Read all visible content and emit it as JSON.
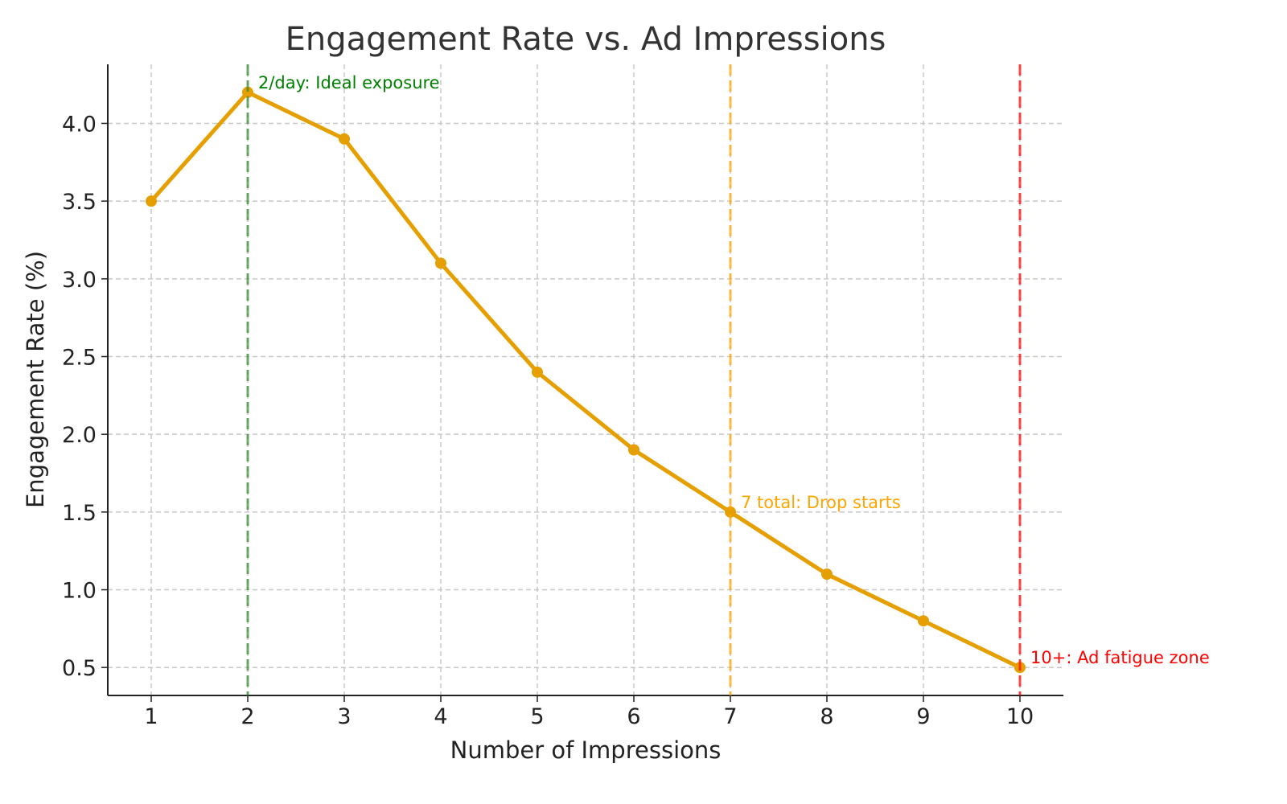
{
  "chart_data": {
    "type": "line",
    "title": "Engagement Rate vs. Ad Impressions",
    "xlabel": "Number of Impressions",
    "ylabel": "Engagement Rate (%)",
    "x": [
      1,
      2,
      3,
      4,
      5,
      6,
      7,
      8,
      9,
      10
    ],
    "series": [
      {
        "values": [
          3.5,
          4.2,
          3.9,
          3.1,
          2.4,
          1.9,
          1.5,
          1.1,
          0.8,
          0.5
        ],
        "color": "#E69F00",
        "marker": "circle"
      }
    ],
    "xlim": [
      0.55,
      10.45
    ],
    "ylim": [
      0.32,
      4.38
    ],
    "xticks": [
      "1",
      "2",
      "3",
      "4",
      "5",
      "6",
      "7",
      "8",
      "9",
      "10"
    ],
    "yticks": [
      "0.5",
      "1.0",
      "1.5",
      "2.0",
      "2.5",
      "3.0",
      "3.5",
      "4.0"
    ],
    "grid": true,
    "vlines": [
      {
        "x": 2,
        "color": "#2e8b2e",
        "style": "dashed"
      },
      {
        "x": 7,
        "color": "#FFA500",
        "style": "dashed"
      },
      {
        "x": 10,
        "color": "#FF0000",
        "style": "dashed"
      }
    ],
    "annotations": [
      {
        "text": "2/day: Ideal exposure",
        "x": 2,
        "y": 4.2,
        "color": "#008000"
      },
      {
        "text": "7 total: Drop starts",
        "x": 7,
        "y": 1.5,
        "color": "#FFA500"
      },
      {
        "text": "10+: Ad fatigue zone",
        "x": 10,
        "y": 0.5,
        "color": "#FF0000"
      }
    ]
  }
}
